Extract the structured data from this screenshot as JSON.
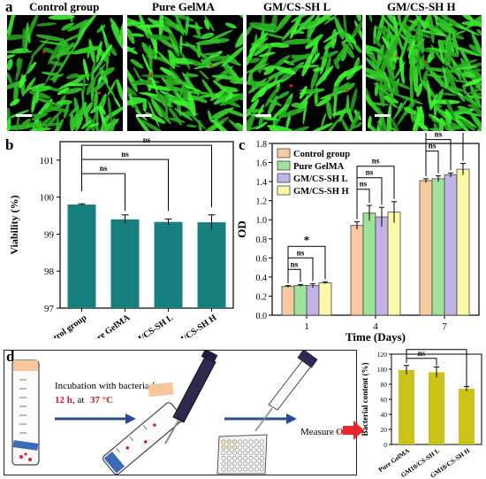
{
  "panel_a": {
    "letter": "a",
    "titles": [
      "Control group",
      "Pure GelMA",
      "GM/CS-SH L",
      "GM/CS-SH H"
    ]
  },
  "panel_b": {
    "letter": "b"
  },
  "panel_c": {
    "letter": "c"
  },
  "panel_d": {
    "letter": "d",
    "incubation_text": "Incubation with bacteria for",
    "duration": "12 h",
    "at": ", at",
    "temperature": "37 °C",
    "measure": "Measure",
    "od": "OD"
  },
  "colors": {
    "teal": "#17807f",
    "olive": "#c9c31a",
    "accent_red": "#e8242c",
    "cell_green": "#22d822",
    "c_series": [
      "#f9c9a0",
      "#9ee39b",
      "#c0b2e6",
      "#fdf7a8"
    ]
  },
  "chart_data": [
    {
      "id": "b",
      "type": "bar",
      "ylabel": "Viability (%)",
      "categories": [
        "Control group",
        "Pure GelMA",
        "GM/CS-SH L",
        "GM/CS-SH H"
      ],
      "values": [
        99.8,
        99.4,
        99.33,
        99.32
      ],
      "errors": [
        0.02,
        0.12,
        0.08,
        0.2
      ],
      "ylim": [
        97,
        101.5
      ],
      "yticks": [
        "97",
        "98",
        "99",
        "100",
        "101"
      ],
      "annotations": [
        "ns",
        "ns",
        "ns"
      ]
    },
    {
      "id": "c",
      "type": "bar",
      "xlabel": "Time (Days)",
      "ylabel": "OD",
      "categories": [
        "1",
        "4",
        "7"
      ],
      "series": [
        {
          "name": "Control group",
          "values": [
            0.3,
            0.94,
            1.41
          ],
          "errors": [
            0.01,
            0.04,
            0.02
          ]
        },
        {
          "name": "Pure GelMA",
          "values": [
            0.31,
            1.07,
            1.43
          ],
          "errors": [
            0.01,
            0.08,
            0.03
          ]
        },
        {
          "name": "GM/CS-SH L",
          "values": [
            0.31,
            1.03,
            1.47
          ],
          "errors": [
            0.02,
            0.1,
            0.02
          ]
        },
        {
          "name": "GM/CS-SH H",
          "values": [
            0.34,
            1.08,
            1.53
          ],
          "errors": [
            0.01,
            0.11,
            0.06
          ]
        }
      ],
      "ylim": [
        0,
        1.8
      ],
      "yticks": [
        "0.0",
        "0.2",
        "0.4",
        "0.6",
        "0.8",
        "1.0",
        "1.2",
        "1.4",
        "1.6",
        "1.8"
      ],
      "annotations": [
        "ns",
        "ns",
        "*",
        "ns",
        "ns",
        "ns",
        "ns",
        "ns",
        "*"
      ]
    },
    {
      "id": "d",
      "type": "bar",
      "ylabel": "Bacterial content (%)",
      "categories": [
        "Pure GelMA",
        "GM10/CS-SH L",
        "GM10/CS-SH H"
      ],
      "values": [
        99,
        96,
        74
      ],
      "errors": [
        6,
        7,
        3
      ],
      "ylim": [
        0,
        120
      ],
      "yticks": [
        "0",
        "20",
        "40",
        "60",
        "80",
        "100",
        "120"
      ],
      "annotations": [
        "ns",
        "***"
      ]
    }
  ]
}
